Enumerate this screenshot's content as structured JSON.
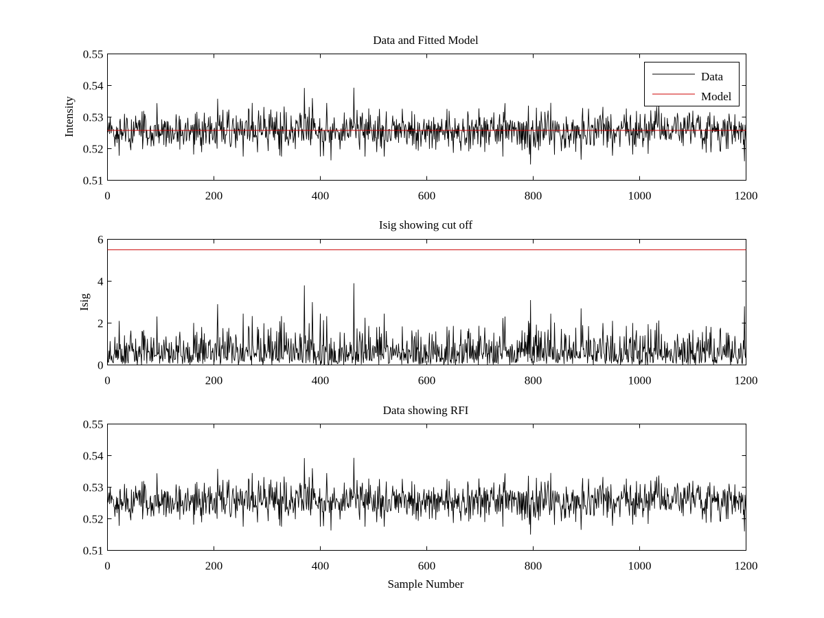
{
  "chart_data": [
    {
      "type": "line",
      "title": "Data and Fitted Model",
      "xlabel": "",
      "ylabel": "Intensity",
      "xlim": [
        0,
        1200
      ],
      "ylim": [
        0.51,
        0.55
      ],
      "xticks": [
        0,
        200,
        400,
        600,
        800,
        1000,
        1200
      ],
      "yticks": [
        0.51,
        0.52,
        0.53,
        0.54,
        0.55
      ],
      "ytick_labels": [
        "0.51",
        "0.52",
        "0.53",
        "0.54",
        "0.55"
      ],
      "legend": {
        "placement": "top-right",
        "entries": [
          {
            "name": "Data",
            "color": "#000000"
          },
          {
            "name": "Model",
            "color": "#cc0000"
          }
        ]
      },
      "series": [
        {
          "name": "Data",
          "kind": "noise",
          "color": "#000000",
          "n": 1200,
          "mean": 0.5257,
          "sd": 0.0032,
          "peaks": [
            [
              37,
              0.5295
            ],
            [
              207,
              0.5358
            ],
            [
              370,
              0.5392
            ],
            [
              385,
              0.536
            ],
            [
              463,
              0.5393
            ],
            [
              420,
              0.5163
            ],
            [
              795,
              0.515
            ],
            [
              890,
              0.5165
            ],
            [
              1197,
              0.516
            ]
          ]
        },
        {
          "name": "Model",
          "kind": "constant",
          "color": "#cc0000",
          "value": 0.5258
        }
      ]
    },
    {
      "type": "line",
      "title": "Isig showing cut off",
      "xlabel": "",
      "ylabel": "Isig",
      "xlim": [
        0,
        1200
      ],
      "ylim": [
        0,
        6
      ],
      "xticks": [
        0,
        200,
        400,
        600,
        800,
        1000,
        1200
      ],
      "yticks": [
        0,
        2,
        4,
        6
      ],
      "ytick_labels": [
        "0",
        "2",
        "4",
        "6"
      ],
      "series": [
        {
          "name": "Isig",
          "kind": "abs-noise",
          "color": "#000000",
          "n": 1200,
          "scale": 0.85,
          "peaks": [
            [
              207,
              2.9
            ],
            [
              370,
              3.8
            ],
            [
              385,
              3.0
            ],
            [
              463,
              3.9
            ],
            [
              795,
              3.1
            ],
            [
              890,
              2.7
            ],
            [
              1197,
              2.8
            ]
          ]
        },
        {
          "name": "Cut off",
          "kind": "constant",
          "color": "#cc0000",
          "value": 5.5
        }
      ]
    },
    {
      "type": "line",
      "title": "Data showing RFI",
      "xlabel": "Sample Number",
      "ylabel": "",
      "xlim": [
        0,
        1200
      ],
      "ylim": [
        0.51,
        0.55
      ],
      "xticks": [
        0,
        200,
        400,
        600,
        800,
        1000,
        1200
      ],
      "yticks": [
        0.51,
        0.52,
        0.53,
        0.54,
        0.55
      ],
      "ytick_labels": [
        "0.51",
        "0.52",
        "0.53",
        "0.54",
        "0.55"
      ],
      "series": [
        {
          "name": "Data",
          "kind": "noise",
          "color": "#000000",
          "n": 1200,
          "mean": 0.5257,
          "sd": 0.0032,
          "peaks": [
            [
              207,
              0.5358
            ],
            [
              370,
              0.5392
            ],
            [
              385,
              0.536
            ],
            [
              463,
              0.5393
            ],
            [
              420,
              0.5163
            ],
            [
              795,
              0.515
            ],
            [
              890,
              0.5165
            ],
            [
              1197,
              0.516
            ]
          ]
        }
      ]
    }
  ]
}
